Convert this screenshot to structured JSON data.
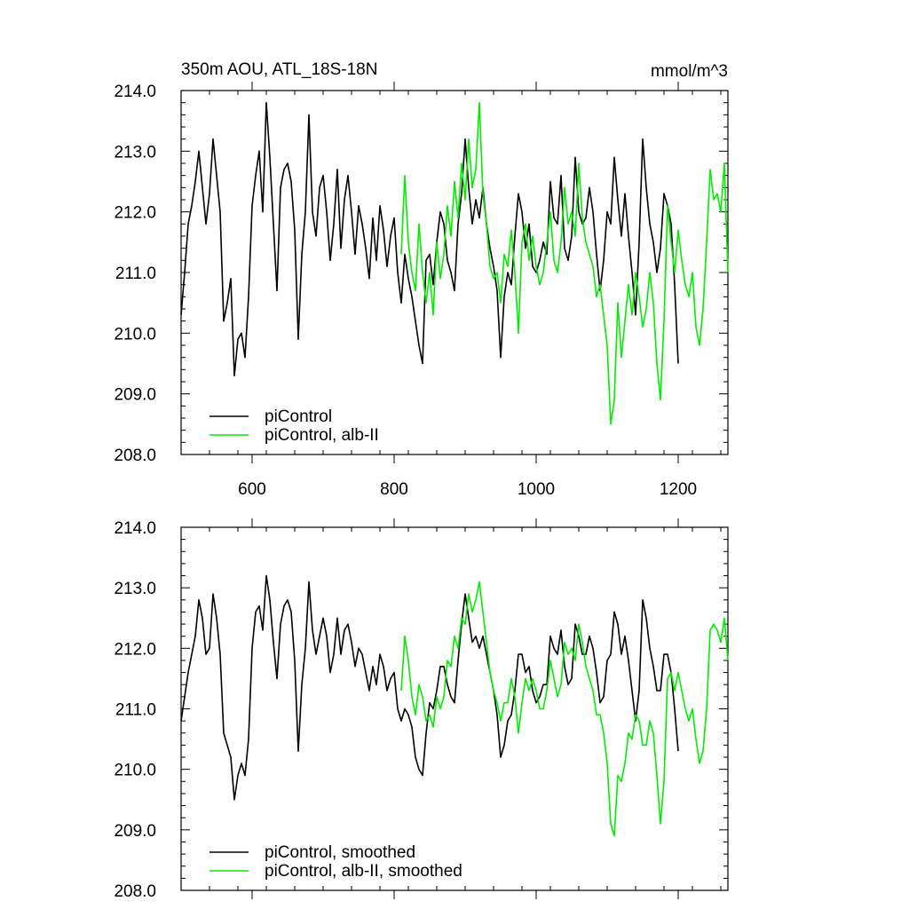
{
  "chart_data": [
    {
      "type": "line",
      "title": "350m AOU, ATL_18S-18N",
      "units": "mmol/m^3",
      "xlabel": "",
      "ylabel": "",
      "xlim": [
        500,
        1270
      ],
      "ylim": [
        208.0,
        214.0
      ],
      "xticks": [
        600,
        800,
        1000,
        1200
      ],
      "yticks": [
        "214.0",
        "213.0",
        "212.0",
        "211.0",
        "210.0",
        "209.0",
        "208.0"
      ],
      "legend_placement": "bottom-left",
      "series": [
        {
          "name": "piControl",
          "color": "#000000",
          "x": [
            500,
            505,
            510,
            515,
            520,
            525,
            530,
            535,
            540,
            545,
            550,
            555,
            560,
            565,
            570,
            575,
            580,
            585,
            590,
            595,
            600,
            605,
            610,
            615,
            620,
            625,
            630,
            635,
            640,
            645,
            650,
            655,
            660,
            665,
            670,
            675,
            680,
            685,
            690,
            695,
            700,
            705,
            710,
            715,
            720,
            725,
            730,
            735,
            740,
            745,
            750,
            755,
            760,
            765,
            770,
            775,
            780,
            785,
            790,
            795,
            800,
            805,
            810,
            815,
            820,
            825,
            830,
            835,
            840,
            845,
            850,
            855,
            860,
            865,
            870,
            875,
            880,
            885,
            890,
            895,
            900,
            905,
            910,
            915,
            920,
            925,
            930,
            935,
            940,
            945,
            950,
            955,
            960,
            965,
            970,
            975,
            980,
            985,
            990,
            995,
            1000,
            1005,
            1010,
            1015,
            1020,
            1025,
            1030,
            1035,
            1040,
            1045,
            1050,
            1055,
            1060,
            1065,
            1070,
            1075,
            1080,
            1085,
            1090,
            1095,
            1100,
            1105,
            1110,
            1115,
            1120,
            1125,
            1130,
            1135,
            1140,
            1145,
            1150,
            1155,
            1160,
            1165,
            1170,
            1175,
            1180,
            1185,
            1190,
            1195,
            1200
          ],
          "values": [
            210.3,
            211.0,
            211.8,
            212.1,
            212.5,
            213.0,
            212.4,
            211.8,
            212.3,
            213.2,
            212.6,
            212.0,
            210.2,
            210.5,
            210.9,
            209.3,
            209.9,
            210.0,
            209.6,
            210.6,
            212.1,
            212.6,
            213.0,
            212.0,
            213.8,
            212.9,
            211.8,
            210.7,
            212.4,
            212.7,
            212.8,
            212.5,
            211.7,
            209.9,
            211.3,
            212.0,
            213.6,
            212.0,
            211.6,
            212.4,
            212.6,
            212.0,
            211.2,
            211.8,
            212.7,
            211.4,
            212.2,
            212.6,
            212.0,
            211.3,
            212.1,
            211.8,
            211.4,
            210.9,
            211.9,
            211.2,
            212.1,
            211.7,
            211.1,
            211.6,
            211.9,
            211.0,
            210.5,
            211.3,
            210.9,
            210.6,
            210.2,
            209.8,
            209.5,
            211.2,
            211.3,
            210.8,
            211.5,
            212.0,
            211.8,
            211.2,
            211.0,
            210.7,
            211.8,
            212.3,
            213.2,
            212.4,
            211.8,
            212.2,
            211.9,
            212.4,
            211.8,
            211.4,
            211.1,
            210.7,
            209.6,
            210.6,
            211.0,
            210.8,
            211.6,
            212.3,
            212.0,
            211.4,
            211.8,
            211.1,
            211.0,
            211.2,
            211.5,
            211.3,
            212.5,
            211.9,
            211.8,
            212.6,
            211.4,
            211.2,
            211.6,
            212.9,
            212.0,
            211.8,
            211.9,
            212.4,
            212.0,
            211.3,
            210.7,
            211.2,
            212.0,
            211.8,
            212.9,
            212.2,
            211.6,
            212.3,
            211.6,
            211.0,
            210.3,
            211.5,
            213.2,
            212.4,
            211.8,
            211.5,
            211.0,
            211.4,
            212.3,
            212.1,
            211.8,
            210.8,
            209.5
          ],
          "smoothed_values": [
            210.8,
            211.2,
            211.6,
            211.9,
            212.2,
            212.8,
            212.5,
            211.9,
            212.0,
            212.9,
            212.5,
            211.9,
            210.6,
            210.4,
            210.2,
            209.5,
            209.9,
            210.1,
            209.9,
            210.5,
            212.0,
            212.6,
            212.7,
            212.3,
            213.2,
            212.8,
            212.1,
            211.5,
            212.4,
            212.7,
            212.8,
            212.6,
            211.8,
            210.3,
            211.4,
            212.0,
            213.1,
            212.3,
            211.9,
            212.2,
            212.5,
            212.2,
            211.6,
            211.9,
            212.5,
            211.9,
            212.3,
            212.4,
            212.1,
            211.7,
            212.0,
            211.9,
            211.6,
            211.3,
            211.7,
            211.4,
            211.9,
            211.7,
            211.3,
            211.5,
            211.6,
            211.0,
            210.8,
            211.0,
            210.9,
            210.7,
            210.2,
            210.0,
            209.9,
            210.6,
            211.1,
            211.0,
            211.3,
            211.7,
            211.7,
            211.4,
            211.2,
            211.1,
            211.8,
            212.4,
            212.9,
            212.5,
            212.1,
            212.2,
            212.0,
            212.2,
            211.9,
            211.6,
            211.3,
            210.9,
            210.2,
            210.4,
            210.8,
            210.9,
            211.3,
            211.9,
            211.9,
            211.6,
            211.7,
            211.3,
            211.1,
            211.2,
            211.4,
            211.4,
            212.2,
            212.0,
            211.9,
            212.3,
            211.7,
            211.4,
            211.5,
            212.4,
            212.2,
            211.9,
            211.9,
            212.2,
            212.0,
            211.6,
            211.1,
            211.2,
            211.8,
            211.9,
            212.6,
            212.4,
            211.9,
            212.2,
            211.8,
            211.3,
            210.8,
            211.3,
            212.8,
            212.5,
            212.0,
            211.7,
            211.3,
            211.3,
            211.9,
            211.9,
            211.6,
            211.0,
            210.3
          ]
        },
        {
          "name": "piControl, alb-II",
          "color": "#00ee00",
          "x": [
            810,
            815,
            820,
            825,
            830,
            835,
            840,
            845,
            850,
            855,
            860,
            865,
            870,
            875,
            880,
            885,
            890,
            895,
            900,
            905,
            910,
            915,
            920,
            925,
            930,
            935,
            940,
            945,
            950,
            955,
            960,
            965,
            970,
            975,
            980,
            985,
            990,
            995,
            1000,
            1005,
            1010,
            1015,
            1020,
            1025,
            1030,
            1035,
            1040,
            1045,
            1050,
            1055,
            1060,
            1065,
            1070,
            1075,
            1080,
            1085,
            1090,
            1095,
            1100,
            1105,
            1110,
            1115,
            1120,
            1125,
            1130,
            1135,
            1140,
            1145,
            1150,
            1155,
            1160,
            1165,
            1170,
            1175,
            1180,
            1185,
            1190,
            1195,
            1200,
            1205,
            1210,
            1215,
            1220,
            1225,
            1230,
            1235,
            1240,
            1245,
            1250,
            1255,
            1260,
            1265,
            1270
          ],
          "values": [
            211.3,
            212.6,
            211.5,
            211.0,
            210.7,
            211.8,
            211.0,
            210.5,
            211.0,
            210.3,
            211.5,
            210.9,
            211.3,
            212.1,
            211.6,
            212.5,
            211.9,
            212.8,
            212.2,
            213.2,
            212.4,
            212.7,
            213.8,
            212.3,
            211.8,
            211.1,
            210.9,
            211.0,
            210.5,
            211.3,
            211.1,
            211.7,
            211.0,
            210.0,
            211.5,
            211.8,
            211.2,
            211.6,
            211.1,
            210.8,
            211.0,
            211.5,
            212.0,
            211.2,
            211.0,
            211.5,
            212.4,
            211.8,
            212.0,
            211.6,
            212.8,
            211.9,
            211.5,
            211.3,
            211.1,
            210.6,
            210.8,
            210.3,
            209.8,
            208.5,
            208.9,
            210.5,
            209.6,
            210.2,
            210.8,
            210.3,
            211.0,
            210.6,
            210.1,
            210.4,
            211.0,
            210.5,
            209.5,
            208.9,
            210.2,
            212.1,
            211.5,
            211.0,
            211.7,
            211.2,
            210.8,
            210.6,
            211.0,
            210.1,
            209.8,
            210.4,
            211.5,
            212.7,
            212.2,
            212.3,
            212.0,
            212.8,
            211.0
          ],
          "smoothed_values": [
            211.3,
            212.2,
            211.8,
            211.2,
            210.9,
            211.4,
            211.2,
            210.8,
            210.9,
            210.7,
            211.2,
            211.0,
            211.2,
            211.8,
            211.7,
            212.2,
            212.0,
            212.5,
            212.4,
            212.9,
            212.6,
            212.8,
            213.1,
            212.6,
            212.1,
            211.6,
            211.3,
            211.1,
            210.8,
            211.1,
            211.1,
            211.5,
            211.2,
            210.6,
            211.1,
            211.5,
            211.3,
            211.5,
            211.3,
            211.0,
            211.0,
            211.3,
            211.8,
            211.5,
            211.2,
            211.4,
            212.1,
            211.9,
            212.0,
            211.8,
            212.4,
            212.1,
            211.7,
            211.5,
            211.3,
            210.9,
            210.9,
            210.6,
            210.1,
            209.1,
            208.9,
            209.9,
            209.8,
            210.1,
            210.6,
            210.5,
            210.9,
            210.8,
            210.4,
            210.4,
            210.8,
            210.6,
            209.9,
            209.1,
            209.8,
            211.5,
            211.6,
            211.3,
            211.6,
            211.3,
            211.0,
            210.8,
            211.0,
            210.5,
            210.1,
            210.3,
            211.0,
            212.3,
            212.4,
            212.3,
            212.1,
            212.5,
            211.8
          ]
        }
      ]
    }
  ],
  "panels": {
    "top": {
      "legend": [
        "piControl",
        "piControl, alb-II"
      ]
    },
    "bottom": {
      "legend": [
        "piControl, smoothed",
        "piControl, alb-II, smoothed"
      ]
    }
  }
}
